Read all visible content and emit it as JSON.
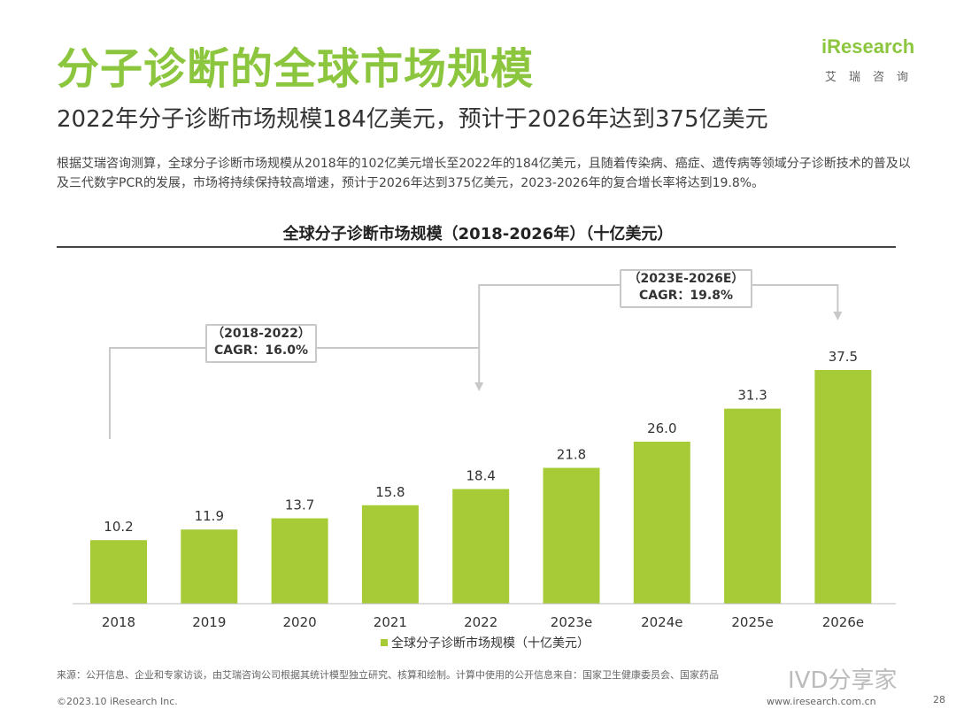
{
  "header": {
    "title": "分子诊断的全球市场规模",
    "subtitle": "2022年分子诊断市场规模184亿美元，预计于2026年达到375亿美元"
  },
  "logo": {
    "brand": "iResearch",
    "cn": "艾瑞咨询"
  },
  "description": "根据艾瑞咨询测算，全球分子诊断市场规模从2018年的102亿美元增长至2022年的184亿美元，且随着传染病、癌症、遗传病等领域分子诊断技术的普及以及三代数字PCR的发展，市场将持续保持较高增速，预计于2026年达到375亿美元，2023-2026年的复合增长率将达到19.8%。",
  "chart_data": {
    "type": "bar",
    "title": "全球分子诊断市场规模（2018-2026年）（十亿美元）",
    "categories": [
      "2018",
      "2019",
      "2020",
      "2021",
      "2022",
      "2023e",
      "2024e",
      "2025e",
      "2026e"
    ],
    "values": [
      10.2,
      11.9,
      13.7,
      15.8,
      18.4,
      21.8,
      26.0,
      31.3,
      37.5
    ],
    "value_labels": [
      "10.2",
      "11.9",
      "13.7",
      "15.8",
      "18.4",
      "21.8",
      "26.0",
      "31.3",
      "37.5"
    ],
    "ylim": [
      0,
      40
    ],
    "legend": "全球分子诊断市场规模（十亿美元）",
    "bar_color": "#a6cb37",
    "annotations": [
      {
        "line1": "（2018-2022）",
        "line2": "CAGR：16.0%",
        "from": "2018",
        "to": "2022"
      },
      {
        "line1": "（2023E-2026E）",
        "line2": "CAGR：19.8%",
        "from": "2022",
        "to": "2026e"
      }
    ]
  },
  "footer": {
    "source": "来源：公开信息、企业和专家访谈，由艾瑞咨询公司根据其统计模型独立研究、核算和绘制。计算中使用的公开信息来自：国家卫生健康委员会、国家药品",
    "watermark": "IVD分享家",
    "copyright": "©2023.10 iResearch Inc.",
    "website": "www.iresearch.com.cn",
    "page": "28"
  }
}
